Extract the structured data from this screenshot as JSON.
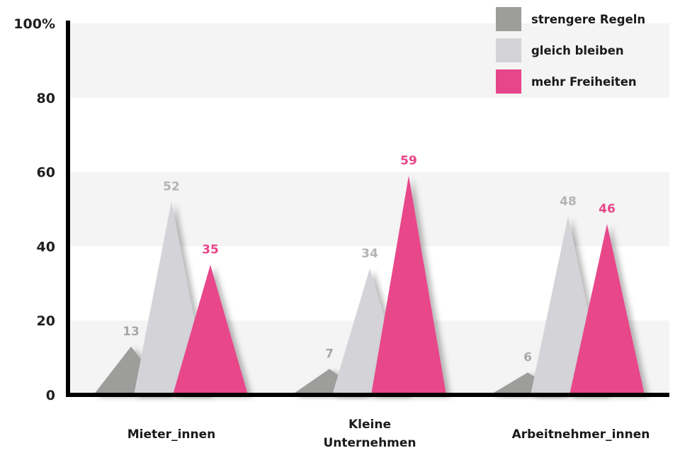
{
  "chart_data": {
    "type": "bar",
    "ylim": [
      0,
      100
    ],
    "y_ticks": [
      "0",
      "20",
      "40",
      "60",
      "80",
      "100%"
    ],
    "categories": [
      [
        "Mieter_innen"
      ],
      [
        "Kleine",
        "Unternehmen"
      ],
      [
        "Arbeitnehmer_innen"
      ]
    ],
    "series": [
      {
        "name": "strengere Regeln",
        "color": "#9d9d9b",
        "label_color": "#a8a8a6",
        "values": [
          13,
          7,
          6
        ]
      },
      {
        "name": "gleich bleiben",
        "color": "#d3d3d8",
        "label_color": "#b3b3b3",
        "values": [
          52,
          34,
          48
        ]
      },
      {
        "name": "mehr Freiheiten",
        "color": "#e8468a",
        "label_color": "#e8468a",
        "values": [
          35,
          59,
          46
        ]
      }
    ],
    "legend_position": "top-right",
    "grid": "horizontal bands"
  }
}
